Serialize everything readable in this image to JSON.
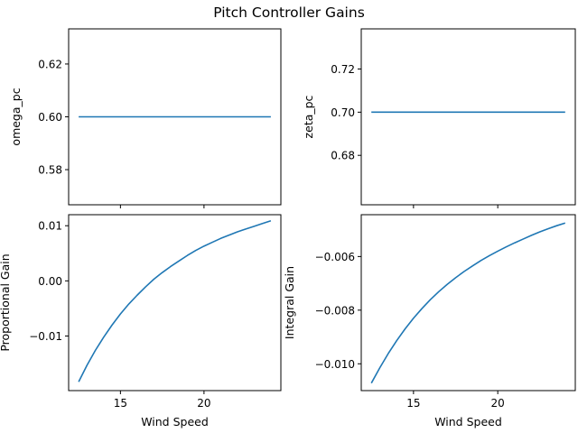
{
  "figure": {
    "suptitle": "Pitch Controller Gains",
    "line_color": "#1f77b4"
  },
  "chart_data": [
    {
      "type": "line",
      "xlabel": "",
      "ylabel": "omega_pc",
      "xlim": [
        11.9,
        24.6
      ],
      "ylim": [
        0.5667,
        0.6333
      ],
      "xticks": [
        15,
        20
      ],
      "xtick_labels": [
        "",
        ""
      ],
      "yticks": [
        0.58,
        0.6,
        0.62
      ],
      "ytick_labels": [
        "0.58",
        "0.60",
        "0.62"
      ],
      "series": [
        {
          "x": [
            12.5,
            24.0
          ],
          "y": [
            0.6,
            0.6
          ]
        }
      ]
    },
    {
      "type": "line",
      "xlabel": "",
      "ylabel": "zeta_pc",
      "xlim": [
        11.9,
        24.6
      ],
      "ylim": [
        0.6571,
        0.7386
      ],
      "xticks": [
        15,
        20
      ],
      "xtick_labels": [
        "",
        ""
      ],
      "yticks": [
        0.68,
        0.7,
        0.72
      ],
      "ytick_labels": [
        "0.68",
        "0.70",
        "0.72"
      ],
      "series": [
        {
          "x": [
            12.5,
            24.0
          ],
          "y": [
            0.7,
            0.7
          ]
        }
      ]
    },
    {
      "type": "line",
      "xlabel": "Wind Speed",
      "ylabel": "Proportional Gain",
      "xlim": [
        11.9,
        24.6
      ],
      "ylim": [
        -0.0199,
        0.012
      ],
      "xticks": [
        15,
        20
      ],
      "xtick_labels": [
        "15",
        "20"
      ],
      "yticks": [
        -0.01,
        0.0,
        0.01
      ],
      "ytick_labels": [
        "−0.01",
        "0.00",
        "0.01"
      ],
      "series": [
        {
          "x": [
            12.5,
            13.0,
            13.5,
            14.0,
            14.5,
            15.0,
            15.5,
            16.0,
            16.5,
            17.0,
            17.5,
            18.0,
            18.5,
            19.0,
            19.5,
            20.0,
            20.5,
            21.0,
            21.5,
            22.0,
            22.5,
            23.0,
            23.5,
            24.0
          ],
          "y": [
            -0.0183,
            -0.0153,
            -0.0126,
            -0.0102,
            -0.008,
            -0.006,
            -0.0042,
            -0.0026,
            -0.0011,
            0.0003,
            0.0015,
            0.0026,
            0.0036,
            0.0046,
            0.0055,
            0.0063,
            0.007,
            0.0077,
            0.0083,
            0.0089,
            0.0094,
            0.0099,
            0.0104,
            0.0109
          ]
        }
      ]
    },
    {
      "type": "line",
      "xlabel": "Wind Speed",
      "ylabel": "Integral Gain",
      "xlim": [
        11.9,
        24.6
      ],
      "ylim": [
        -0.011,
        -0.00444
      ],
      "xticks": [
        15,
        20
      ],
      "xtick_labels": [
        "15",
        "20"
      ],
      "yticks": [
        -0.01,
        -0.008,
        -0.006
      ],
      "ytick_labels": [
        "−0.010",
        "−0.008",
        "−0.006"
      ],
      "series": [
        {
          "x": [
            12.5,
            13.0,
            13.5,
            14.0,
            14.5,
            15.0,
            15.5,
            16.0,
            16.5,
            17.0,
            17.5,
            18.0,
            18.5,
            19.0,
            19.5,
            20.0,
            20.5,
            21.0,
            21.5,
            22.0,
            22.5,
            23.0,
            23.5,
            24.0
          ],
          "y": [
            -0.01072,
            -0.01015,
            -0.00962,
            -0.00914,
            -0.0087,
            -0.0083,
            -0.00794,
            -0.00761,
            -0.00731,
            -0.00704,
            -0.00679,
            -0.00656,
            -0.00635,
            -0.00615,
            -0.00597,
            -0.0058,
            -0.00564,
            -0.00549,
            -0.00535,
            -0.00521,
            -0.00508,
            -0.00496,
            -0.00485,
            -0.00475
          ]
        }
      ]
    }
  ]
}
